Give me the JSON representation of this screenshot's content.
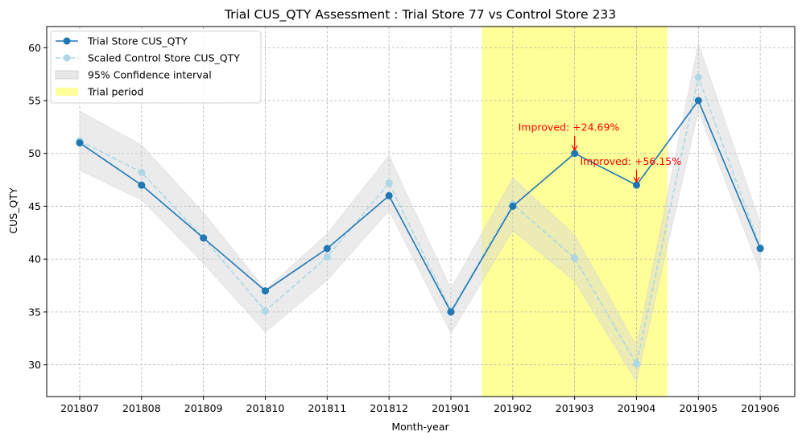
{
  "chart_data": {
    "type": "line",
    "title": "Trial CUS_QTY Assessment : Trial Store 77 vs Control Store 233",
    "xlabel": "Month-year",
    "ylabel": "CUS_QTY",
    "categories": [
      "201807",
      "201808",
      "201809",
      "201810",
      "201811",
      "201812",
      "201901",
      "201902",
      "201903",
      "201904",
      "201905",
      "201906"
    ],
    "ylim": [
      27,
      62
    ],
    "yticks": [
      30,
      35,
      40,
      45,
      50,
      55,
      60
    ],
    "grid": true,
    "legend_position": "top-left",
    "series": [
      {
        "name": "Trial Store CUS_QTY",
        "values": [
          51,
          47,
          42,
          37,
          41,
          46,
          35,
          45,
          50,
          47,
          55,
          41
        ],
        "color": "#1f77b4",
        "style": "solid"
      },
      {
        "name": "Scaled Control Store CUS_QTY",
        "values": [
          51.2,
          48.2,
          42.0,
          35.1,
          40.2,
          47.2,
          35.1,
          45.2,
          40.1,
          30.1,
          57.2,
          41.1
        ],
        "color": "#add8e6",
        "style": "dashed"
      }
    ],
    "confidence_interval": {
      "name": "95% Confidence interval",
      "lower": [
        48.4,
        45.6,
        39.6,
        33.1,
        38.0,
        44.6,
        33.0,
        42.7,
        37.9,
        28.4,
        54.0,
        38.8
      ],
      "upper": [
        54.0,
        50.8,
        44.4,
        37.1,
        42.4,
        49.8,
        37.2,
        47.7,
        42.3,
        31.8,
        60.4,
        43.4
      ],
      "color": "#d3d3d3"
    },
    "trial_period": {
      "name": "Trial period",
      "start": "201902",
      "end": "201904",
      "color": "#ffff99"
    },
    "annotations": [
      {
        "text": "Improved: +24.69%",
        "category": "201903",
        "value": 50,
        "color": "#ff0000"
      },
      {
        "text": "Improved: +56.15%",
        "category": "201904",
        "value": 47,
        "color": "#ff0000"
      }
    ]
  }
}
